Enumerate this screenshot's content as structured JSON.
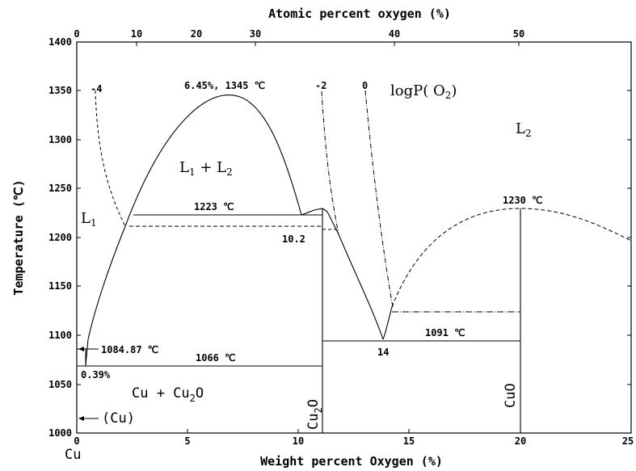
{
  "diagram": {
    "top_axis": {
      "title": "Atomic percent oxygen (%)",
      "ticks": [
        "0",
        "10",
        "20",
        "30",
        "40",
        "50"
      ]
    },
    "bottom_axis": {
      "title": "Weight percent Oxygen (%)",
      "ticks": [
        "0",
        "5",
        "10",
        "15",
        "20",
        "25"
      ]
    },
    "left_axis": {
      "title": "Temperature (℃)",
      "ticks": [
        "1000",
        "1050",
        "1100",
        "1150",
        "1200",
        "1250",
        "1300",
        "1350",
        "1400"
      ]
    },
    "labels": {
      "cu": "Cu",
      "peak": "6.45%, 1345 ℃",
      "logp": "logP( O",
      "logp_sub": "2",
      "logp_close": ")",
      "iso_m4": "-4",
      "iso_m2": "-2",
      "iso_0": "0",
      "l2": "L",
      "l2_sub": "2",
      "l1l2_a": "L",
      "l1l2_sub1": "1",
      "l1l2_plus": " + L",
      "l1l2_sub2": "2",
      "l1": "L",
      "l1_sub": "1",
      "t1223": "1223 ℃",
      "t1230": "1230 ℃",
      "p10_2": "10.2",
      "t1084": "1084.87 ℃",
      "t1066": "1066 ℃",
      "p039": "0.39%",
      "t1091": "1091 ℃",
      "p14": "14",
      "cucu2o_a": "Cu + Cu",
      "cucu2o_sub": "2",
      "cucu2o_b": "O",
      "cu_solid": "(Cu)",
      "cu2o_a": "Cu",
      "cu2o_sub": "2",
      "cu2o_b": "O",
      "cuo": "CuO"
    }
  }
}
